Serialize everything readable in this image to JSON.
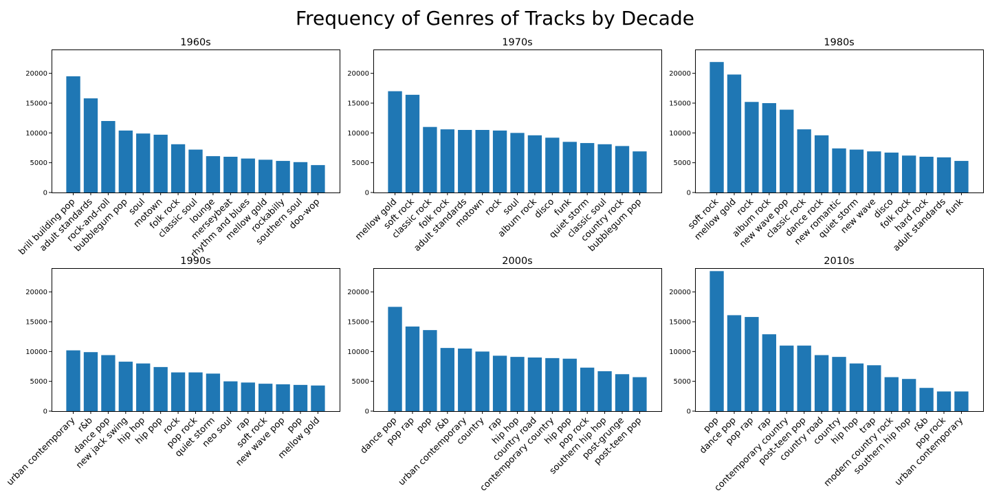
{
  "title": "Frequency of Genres of Tracks by Decade",
  "colors": {
    "bar": "#1f77b4"
  },
  "chart_data": [
    {
      "type": "bar",
      "title": "1960s",
      "ylim": [
        0,
        24000
      ],
      "yticks": [
        0,
        5000,
        10000,
        15000,
        20000
      ],
      "categories": [
        "brill building pop",
        "adult standards",
        "rock-and-roll",
        "bubblegum pop",
        "soul",
        "motown",
        "folk rock",
        "classic soul",
        "lounge",
        "merseybeat",
        "rhythm and blues",
        "mellow gold",
        "rockabilly",
        "southern soul",
        "doo-wop"
      ],
      "values": [
        19500,
        15800,
        12000,
        10400,
        9900,
        9700,
        8100,
        7200,
        6100,
        6000,
        5700,
        5500,
        5300,
        5100,
        4600
      ]
    },
    {
      "type": "bar",
      "title": "1970s",
      "ylim": [
        0,
        24000
      ],
      "yticks": [
        0,
        5000,
        10000,
        15000,
        20000
      ],
      "categories": [
        "mellow gold",
        "soft rock",
        "classic rock",
        "folk rock",
        "adult standards",
        "motown",
        "rock",
        "soul",
        "album rock",
        "disco",
        "funk",
        "quiet storm",
        "classic soul",
        "country rock",
        "bubblegum pop"
      ],
      "values": [
        17000,
        16400,
        11000,
        10600,
        10500,
        10500,
        10400,
        10000,
        9600,
        9200,
        8500,
        8300,
        8100,
        7800,
        6900
      ]
    },
    {
      "type": "bar",
      "title": "1980s",
      "ylim": [
        0,
        24000
      ],
      "yticks": [
        0,
        5000,
        10000,
        15000,
        20000
      ],
      "categories": [
        "soft rock",
        "mellow gold",
        "rock",
        "album rock",
        "new wave pop",
        "classic rock",
        "dance rock",
        "new romantic",
        "quiet storm",
        "new wave",
        "disco",
        "folk rock",
        "hard rock",
        "adult standards",
        "funk"
      ],
      "values": [
        21900,
        19800,
        15200,
        15000,
        13900,
        10600,
        9600,
        7400,
        7200,
        6900,
        6700,
        6200,
        6000,
        5900,
        5300
      ]
    },
    {
      "type": "bar",
      "title": "1990s",
      "ylim": [
        0,
        24000
      ],
      "yticks": [
        0,
        5000,
        10000,
        15000,
        20000
      ],
      "categories": [
        "urban contemporary",
        "r&b",
        "dance pop",
        "new jack swing",
        "hip hop",
        "hip pop",
        "rock",
        "pop rock",
        "quiet storm",
        "neo soul",
        "rap",
        "soft rock",
        "new wave pop",
        "pop",
        "mellow gold"
      ],
      "values": [
        10200,
        9900,
        9400,
        8300,
        8000,
        7400,
        6500,
        6500,
        6300,
        5000,
        4800,
        4600,
        4500,
        4400,
        4300
      ]
    },
    {
      "type": "bar",
      "title": "2000s",
      "ylim": [
        0,
        24000
      ],
      "yticks": [
        0,
        5000,
        10000,
        15000,
        20000
      ],
      "categories": [
        "dance pop",
        "pop rap",
        "pop",
        "r&b",
        "urban contemporary",
        "country",
        "rap",
        "hip hop",
        "country road",
        "contemporary country",
        "hip pop",
        "pop rock",
        "southern hip hop",
        "post-grunge",
        "post-teen pop"
      ],
      "values": [
        17500,
        14200,
        13600,
        10600,
        10500,
        10000,
        9300,
        9100,
        9000,
        8900,
        8800,
        7300,
        6700,
        6200,
        5700
      ]
    },
    {
      "type": "bar",
      "title": "2010s",
      "ylim": [
        0,
        24000
      ],
      "yticks": [
        0,
        5000,
        10000,
        15000,
        20000
      ],
      "categories": [
        "pop",
        "dance pop",
        "pop rap",
        "rap",
        "contemporary country",
        "post-teen pop",
        "country road",
        "country",
        "hip hop",
        "trap",
        "modern country rock",
        "southern hip hop",
        "r&b",
        "pop rock",
        "urban contemporary"
      ],
      "values": [
        23500,
        16100,
        15800,
        12900,
        11000,
        11000,
        9400,
        9100,
        8000,
        7700,
        5700,
        5400,
        3900,
        3300,
        3300
      ]
    }
  ]
}
